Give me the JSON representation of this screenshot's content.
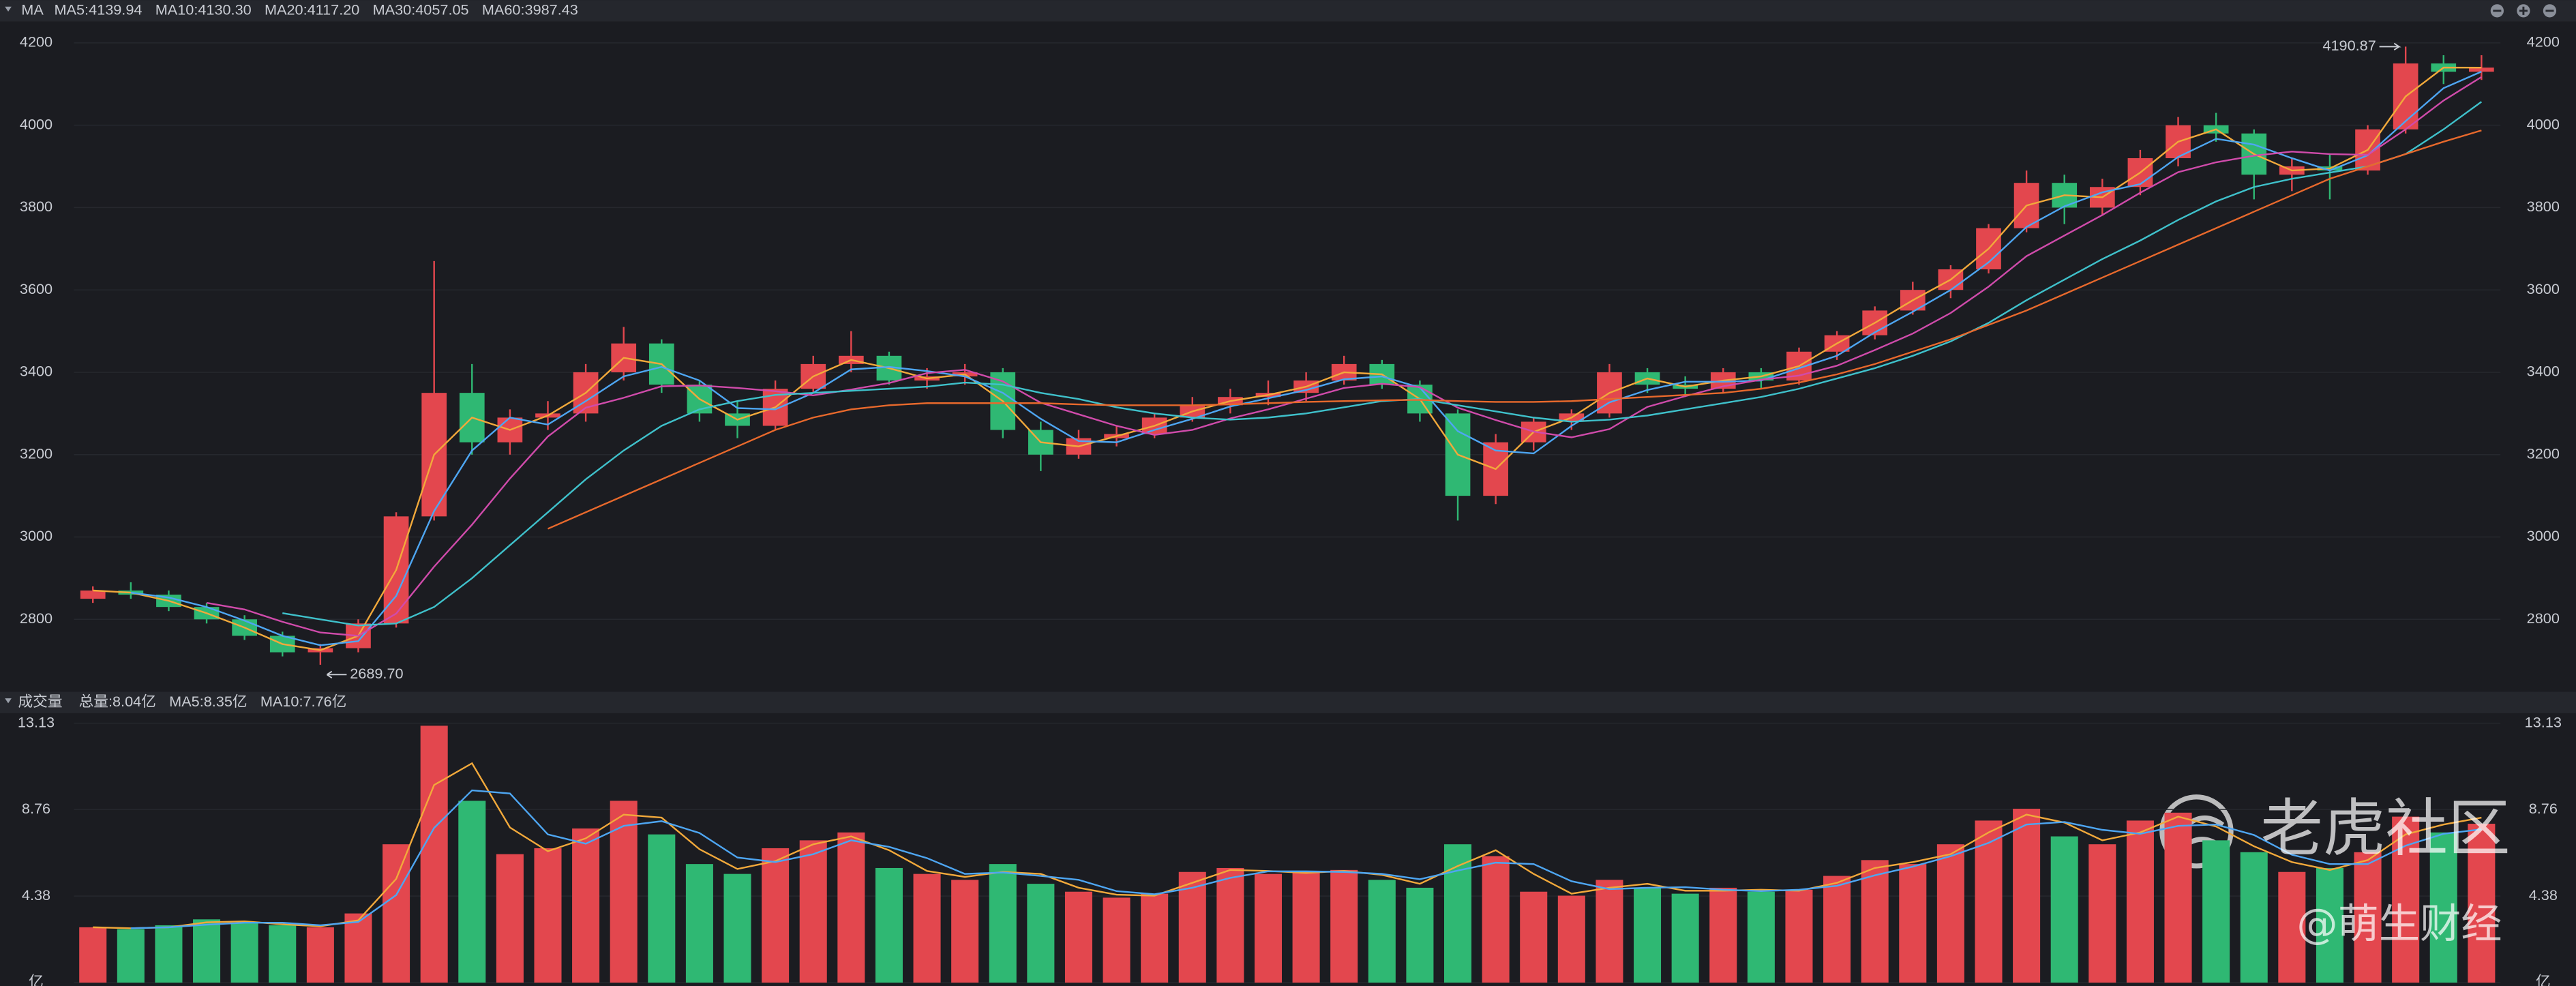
{
  "chart_data": [
    {
      "type": "candlestick",
      "title": "MA",
      "up_color": "#e3474e",
      "down_color": "#2fb873",
      "ylim": [
        2636,
        4248
      ],
      "yticks": [
        2800,
        3000,
        3200,
        3400,
        3600,
        3800,
        4000,
        4200
      ],
      "candles": [
        [
          2850,
          2880,
          2840,
          2870
        ],
        [
          2870,
          2890,
          2850,
          2860
        ],
        [
          2860,
          2870,
          2820,
          2830
        ],
        [
          2830,
          2840,
          2790,
          2800
        ],
        [
          2800,
          2810,
          2750,
          2760
        ],
        [
          2760,
          2770,
          2710,
          2720
        ],
        [
          2720,
          2740,
          2689.7,
          2730
        ],
        [
          2730,
          2800,
          2720,
          2790
        ],
        [
          2790,
          3060,
          2780,
          3050
        ],
        [
          3050,
          3670,
          3040,
          3350
        ],
        [
          3350,
          3420,
          3200,
          3230
        ],
        [
          3230,
          3310,
          3200,
          3290
        ],
        [
          3290,
          3330,
          3260,
          3300
        ],
        [
          3300,
          3420,
          3280,
          3400
        ],
        [
          3400,
          3510,
          3380,
          3470
        ],
        [
          3470,
          3480,
          3350,
          3370
        ],
        [
          3370,
          3380,
          3280,
          3300
        ],
        [
          3300,
          3330,
          3240,
          3270
        ],
        [
          3270,
          3380,
          3260,
          3360
        ],
        [
          3360,
          3440,
          3350,
          3420
        ],
        [
          3420,
          3500,
          3400,
          3440
        ],
        [
          3440,
          3450,
          3370,
          3380
        ],
        [
          3380,
          3410,
          3360,
          3390
        ],
        [
          3390,
          3420,
          3370,
          3400
        ],
        [
          3400,
          3410,
          3240,
          3260
        ],
        [
          3260,
          3280,
          3160,
          3200
        ],
        [
          3200,
          3260,
          3190,
          3240
        ],
        [
          3240,
          3270,
          3220,
          3250
        ],
        [
          3250,
          3300,
          3240,
          3290
        ],
        [
          3290,
          3340,
          3280,
          3320
        ],
        [
          3320,
          3360,
          3300,
          3340
        ],
        [
          3340,
          3380,
          3320,
          3350
        ],
        [
          3350,
          3400,
          3330,
          3380
        ],
        [
          3380,
          3440,
          3370,
          3420
        ],
        [
          3420,
          3430,
          3360,
          3370
        ],
        [
          3370,
          3380,
          3280,
          3300
        ],
        [
          3300,
          3310,
          3040,
          3100
        ],
        [
          3100,
          3250,
          3080,
          3230
        ],
        [
          3230,
          3290,
          3210,
          3280
        ],
        [
          3280,
          3310,
          3260,
          3300
        ],
        [
          3300,
          3420,
          3290,
          3400
        ],
        [
          3400,
          3410,
          3350,
          3370
        ],
        [
          3370,
          3390,
          3340,
          3360
        ],
        [
          3360,
          3410,
          3350,
          3400
        ],
        [
          3400,
          3410,
          3360,
          3380
        ],
        [
          3380,
          3460,
          3370,
          3450
        ],
        [
          3450,
          3500,
          3430,
          3490
        ],
        [
          3490,
          3560,
          3480,
          3550
        ],
        [
          3550,
          3620,
          3540,
          3600
        ],
        [
          3600,
          3660,
          3580,
          3650
        ],
        [
          3650,
          3760,
          3640,
          3750
        ],
        [
          3750,
          3890,
          3740,
          3860
        ],
        [
          3860,
          3880,
          3760,
          3800
        ],
        [
          3800,
          3870,
          3780,
          3850
        ],
        [
          3850,
          3940,
          3830,
          3920
        ],
        [
          3920,
          4020,
          3900,
          4000
        ],
        [
          4000,
          4030,
          3960,
          3980
        ],
        [
          3980,
          3990,
          3820,
          3880
        ],
        [
          3880,
          3920,
          3840,
          3900
        ],
        [
          3900,
          3930,
          3820,
          3890
        ],
        [
          3890,
          4000,
          3880,
          3990
        ],
        [
          3990,
          4190.87,
          3980,
          4150
        ],
        [
          4150,
          4170,
          4100,
          4130
        ],
        [
          4130,
          4170,
          4110,
          4140
        ]
      ],
      "annotations": [
        {
          "label": "4190.87",
          "candle": 61,
          "value": 4190.87,
          "side": "left"
        },
        {
          "label": "2689.70",
          "candle": 6,
          "value": 2689.7,
          "side": "right"
        }
      ],
      "series": [
        {
          "name": "MA5:4139.94",
          "color": "#f2a93b",
          "values": [
            2870,
            2865,
            2845,
            2815,
            2780,
            2740,
            2725,
            2760,
            2920,
            3200,
            3290,
            3260,
            3295,
            3350,
            3435,
            3420,
            3335,
            3285,
            3315,
            3390,
            3430,
            3410,
            3385,
            3395,
            3330,
            3230,
            3220,
            3245,
            3270,
            3305,
            3330,
            3345,
            3365,
            3400,
            3395,
            3335,
            3200,
            3165,
            3255,
            3290,
            3350,
            3385,
            3365,
            3380,
            3390,
            3415,
            3470,
            3520,
            3575,
            3625,
            3700,
            3805,
            3830,
            3825,
            3885,
            3960,
            3990,
            3930,
            3890,
            3895,
            3940,
            4070,
            4140,
            4139.94
          ]
        },
        {
          "name": "MA10:4130.30",
          "color": "#4ea6f2",
          "values": [
            null,
            2865,
            2853,
            2830,
            2797,
            2760,
            2737,
            2747,
            2857,
            3063,
            3210,
            3290,
            3273,
            3330,
            3390,
            3413,
            3380,
            3313,
            3310,
            3350,
            3407,
            3413,
            3403,
            3390,
            3350,
            3287,
            3233,
            3230,
            3260,
            3287,
            3317,
            3337,
            3357,
            3383,
            3390,
            3363,
            3257,
            3210,
            3203,
            3270,
            3327,
            3357,
            3377,
            3377,
            3380,
            3410,
            3440,
            3497,
            3547,
            3600,
            3667,
            3753,
            3803,
            3837,
            3857,
            3923,
            3967,
            3953,
            3920,
            3890,
            3927,
            4010,
            4090,
            4130.3
          ]
        },
        {
          "name": "MA20:4117.20",
          "color": "#d04bab",
          "values": [
            null,
            null,
            null,
            2840,
            2824,
            2794,
            2768,
            2760,
            2814,
            2928,
            3030,
            3142,
            3244,
            3314,
            3338,
            3366,
            3368,
            3362,
            3354,
            3344,
            3358,
            3374,
            3398,
            3406,
            3378,
            3326,
            3298,
            3270,
            3248,
            3260,
            3288,
            3310,
            3336,
            3362,
            3372,
            3364,
            3314,
            3284,
            3256,
            3242,
            3262,
            3316,
            3342,
            3366,
            3382,
            3392,
            3416,
            3454,
            3494,
            3544,
            3608,
            3682,
            3732,
            3782,
            3836,
            3886,
            3910,
            3926,
            3936,
            3930,
            3928,
            3990,
            4060,
            4117.2
          ]
        },
        {
          "name": "MA30:4057.05",
          "color": "#3fc1cb",
          "values": [
            null,
            null,
            null,
            null,
            null,
            2815,
            2800,
            2785,
            2790,
            2830,
            2900,
            2980,
            3060,
            3140,
            3210,
            3270,
            3310,
            3330,
            3345,
            3350,
            3355,
            3360,
            3365,
            3375,
            3370,
            3350,
            3335,
            3315,
            3300,
            3290,
            3285,
            3290,
            3300,
            3315,
            3330,
            3335,
            3320,
            3305,
            3290,
            3280,
            3285,
            3295,
            3310,
            3325,
            3340,
            3360,
            3385,
            3410,
            3440,
            3475,
            3520,
            3575,
            3625,
            3675,
            3720,
            3770,
            3815,
            3850,
            3870,
            3885,
            3900,
            3930,
            3990,
            4057.05
          ]
        },
        {
          "name": "MA60:3987.43",
          "color": "#e8692c",
          "values": [
            null,
            null,
            null,
            null,
            null,
            null,
            null,
            null,
            null,
            null,
            null,
            null,
            3020,
            3060,
            3100,
            3140,
            3180,
            3220,
            3260,
            3290,
            3310,
            3320,
            3325,
            3325,
            3325,
            3325,
            3322,
            3320,
            3320,
            3320,
            3322,
            3325,
            3328,
            3330,
            3332,
            3333,
            3330,
            3328,
            3328,
            3330,
            3335,
            3340,
            3345,
            3350,
            3360,
            3375,
            3395,
            3420,
            3450,
            3480,
            3515,
            3550,
            3590,
            3630,
            3670,
            3710,
            3750,
            3790,
            3830,
            3870,
            3900,
            3930,
            3960,
            3987.43
          ]
        }
      ]
    },
    {
      "type": "bar",
      "title": "成交量",
      "total_label": "总量:8.04亿",
      "total_color": "#2fb873",
      "ylim": [
        0,
        13.47
      ],
      "yticks": [
        {
          "value": 0,
          "label": "亿"
        },
        4.38,
        8.76,
        13.13
      ],
      "values": [
        2.8,
        2.7,
        2.9,
        3.2,
        3.0,
        2.9,
        2.8,
        3.5,
        7.0,
        13.0,
        9.2,
        6.5,
        6.8,
        7.8,
        9.2,
        7.5,
        6.0,
        5.5,
        6.8,
        7.2,
        7.6,
        5.8,
        5.5,
        5.2,
        6.0,
        5.0,
        4.6,
        4.3,
        4.5,
        5.6,
        5.8,
        5.5,
        5.6,
        5.7,
        5.2,
        4.8,
        7.0,
        6.4,
        4.6,
        4.4,
        5.2,
        4.8,
        4.5,
        4.8,
        4.6,
        4.7,
        5.4,
        6.2,
        6.0,
        7.0,
        8.2,
        8.8,
        7.4,
        7.0,
        8.2,
        8.6,
        7.2,
        6.6,
        5.6,
        5.8,
        6.6,
        8.4,
        7.6,
        8.04
      ],
      "series": [
        {
          "name": "MA5:8.35亿",
          "color": "#f2a93b",
          "values": [
            2.8,
            2.75,
            2.8,
            3.05,
            3.1,
            2.95,
            2.85,
            3.15,
            5.25,
            10.0,
            11.1,
            7.85,
            6.65,
            7.3,
            8.5,
            8.35,
            6.75,
            5.75,
            6.15,
            7.0,
            7.4,
            6.7,
            5.65,
            5.35,
            5.6,
            5.5,
            4.8,
            4.45,
            4.4,
            5.05,
            5.7,
            5.65,
            5.55,
            5.65,
            5.45,
            5.0,
            5.9,
            6.7,
            5.5,
            4.5,
            4.8,
            5.0,
            4.65,
            4.65,
            4.7,
            4.65,
            5.05,
            5.8,
            6.1,
            6.5,
            7.6,
            8.5,
            8.1,
            7.2,
            7.6,
            8.4,
            7.9,
            6.9,
            6.1,
            5.7,
            6.2,
            7.5,
            8.0,
            8.35
          ]
        },
        {
          "name": "MA10:7.76亿",
          "color": "#4ea6f2",
          "values": [
            null,
            2.75,
            2.8,
            2.93,
            3.03,
            3.03,
            2.9,
            3.07,
            4.43,
            7.83,
            9.73,
            9.57,
            7.5,
            7.03,
            7.93,
            8.17,
            7.57,
            6.33,
            6.1,
            6.5,
            7.2,
            6.87,
            6.3,
            5.5,
            5.57,
            5.4,
            5.2,
            4.63,
            4.47,
            4.8,
            5.3,
            5.63,
            5.63,
            5.6,
            5.5,
            5.23,
            5.67,
            6.07,
            6.0,
            5.13,
            4.73,
            4.8,
            4.83,
            4.7,
            4.63,
            4.7,
            4.9,
            5.43,
            5.87,
            6.4,
            7.07,
            8.0,
            8.13,
            7.73,
            7.53,
            7.93,
            8.0,
            7.47,
            6.47,
            6.0,
            6.0,
            6.93,
            7.53,
            7.76
          ]
        }
      ]
    }
  ],
  "watermark": {
    "brand": "老虎社区",
    "author": "@萌生财经"
  }
}
